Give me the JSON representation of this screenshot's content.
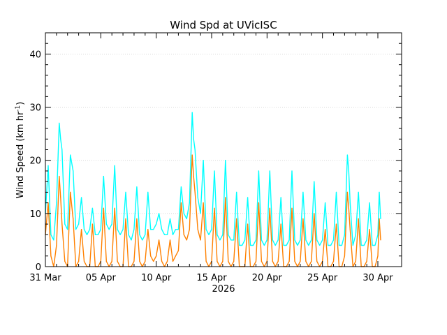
{
  "chart_data": {
    "type": "line",
    "title": "Wind Spd at UVicISC",
    "ylabel": "Wind Speed (km hr",
    "ylabel_sup": "-1",
    "ylabel_tail": ")",
    "xlabel": "2026",
    "ylim": [
      0,
      44
    ],
    "yticks": [
      0,
      10,
      20,
      30,
      40
    ],
    "xlim": [
      "2026-03-31",
      "2026-04-30"
    ],
    "xticks": [
      {
        "date": "2026-03-31",
        "label": "31 Mar"
      },
      {
        "date": "2026-04-05",
        "label": "05 Apr"
      },
      {
        "date": "2026-04-10",
        "label": "10 Apr"
      },
      {
        "date": "2026-04-15",
        "label": "15 Apr"
      },
      {
        "date": "2026-04-20",
        "label": "20 Apr"
      },
      {
        "date": "2026-04-25",
        "label": "25 Apr"
      },
      {
        "date": "2026-04-30",
        "label": "30 Apr"
      }
    ],
    "grid": true,
    "series": [
      {
        "color": "#00ffff",
        "points": [
          [
            "2026-03-31T00:00",
            10
          ],
          [
            "2026-03-31T06:00",
            19
          ],
          [
            "2026-03-31T12:00",
            6
          ],
          [
            "2026-03-31T18:00",
            5
          ],
          [
            "2026-04-01T00:00",
            12
          ],
          [
            "2026-04-01T06:00",
            27
          ],
          [
            "2026-04-01T09:00",
            24
          ],
          [
            "2026-04-01T12:00",
            22
          ],
          [
            "2026-04-01T18:00",
            8
          ],
          [
            "2026-04-02T00:00",
            7
          ],
          [
            "2026-04-02T06:00",
            21
          ],
          [
            "2026-04-02T12:00",
            18
          ],
          [
            "2026-04-02T18:00",
            7
          ],
          [
            "2026-04-03T00:00",
            8
          ],
          [
            "2026-04-03T06:00",
            13
          ],
          [
            "2026-04-03T12:00",
            7
          ],
          [
            "2026-04-03T18:00",
            6
          ],
          [
            "2026-04-04T00:00",
            7
          ],
          [
            "2026-04-04T06:00",
            11
          ],
          [
            "2026-04-04T12:00",
            6
          ],
          [
            "2026-04-04T18:00",
            6
          ],
          [
            "2026-04-05T00:00",
            7
          ],
          [
            "2026-04-05T06:00",
            17
          ],
          [
            "2026-04-05T12:00",
            8
          ],
          [
            "2026-04-05T18:00",
            7
          ],
          [
            "2026-04-06T00:00",
            8
          ],
          [
            "2026-04-06T06:00",
            19
          ],
          [
            "2026-04-06T12:00",
            7
          ],
          [
            "2026-04-06T18:00",
            6
          ],
          [
            "2026-04-07T00:00",
            7
          ],
          [
            "2026-04-07T06:00",
            14
          ],
          [
            "2026-04-07T12:00",
            6
          ],
          [
            "2026-04-07T18:00",
            5
          ],
          [
            "2026-04-08T00:00",
            7
          ],
          [
            "2026-04-08T06:00",
            15
          ],
          [
            "2026-04-08T12:00",
            6
          ],
          [
            "2026-04-08T18:00",
            5
          ],
          [
            "2026-04-09T00:00",
            6
          ],
          [
            "2026-04-09T06:00",
            14
          ],
          [
            "2026-04-09T12:00",
            7
          ],
          [
            "2026-04-09T18:00",
            7
          ],
          [
            "2026-04-10T00:00",
            8
          ],
          [
            "2026-04-10T06:00",
            10
          ],
          [
            "2026-04-10T12:00",
            7
          ],
          [
            "2026-04-10T18:00",
            6
          ],
          [
            "2026-04-11T00:00",
            6
          ],
          [
            "2026-04-11T06:00",
            9
          ],
          [
            "2026-04-11T12:00",
            6
          ],
          [
            "2026-04-11T18:00",
            7
          ],
          [
            "2026-04-12T00:00",
            7
          ],
          [
            "2026-04-12T06:00",
            15
          ],
          [
            "2026-04-12T12:00",
            10
          ],
          [
            "2026-04-12T18:00",
            9
          ],
          [
            "2026-04-13T00:00",
            12
          ],
          [
            "2026-04-13T06:00",
            29
          ],
          [
            "2026-04-13T09:00",
            24
          ],
          [
            "2026-04-13T12:00",
            22
          ],
          [
            "2026-04-13T18:00",
            13
          ],
          [
            "2026-04-14T00:00",
            10
          ],
          [
            "2026-04-14T06:00",
            20
          ],
          [
            "2026-04-14T12:00",
            7
          ],
          [
            "2026-04-14T18:00",
            6
          ],
          [
            "2026-04-15T00:00",
            7
          ],
          [
            "2026-04-15T06:00",
            18
          ],
          [
            "2026-04-15T12:00",
            6
          ],
          [
            "2026-04-15T18:00",
            5
          ],
          [
            "2026-04-16T00:00",
            6
          ],
          [
            "2026-04-16T06:00",
            20
          ],
          [
            "2026-04-16T12:00",
            6
          ],
          [
            "2026-04-16T18:00",
            5
          ],
          [
            "2026-04-17T00:00",
            5
          ],
          [
            "2026-04-17T06:00",
            14
          ],
          [
            "2026-04-17T12:00",
            4
          ],
          [
            "2026-04-17T18:00",
            4
          ],
          [
            "2026-04-18T00:00",
            5
          ],
          [
            "2026-04-18T06:00",
            13
          ],
          [
            "2026-04-18T12:00",
            4
          ],
          [
            "2026-04-18T18:00",
            4
          ],
          [
            "2026-04-19T00:00",
            5
          ],
          [
            "2026-04-19T06:00",
            18
          ],
          [
            "2026-04-19T12:00",
            5
          ],
          [
            "2026-04-19T18:00",
            4
          ],
          [
            "2026-04-20T00:00",
            5
          ],
          [
            "2026-04-20T06:00",
            18
          ],
          [
            "2026-04-20T12:00",
            5
          ],
          [
            "2026-04-20T18:00",
            4
          ],
          [
            "2026-04-21T00:00",
            5
          ],
          [
            "2026-04-21T06:00",
            13
          ],
          [
            "2026-04-21T12:00",
            4
          ],
          [
            "2026-04-21T18:00",
            4
          ],
          [
            "2026-04-22T00:00",
            5
          ],
          [
            "2026-04-22T06:00",
            18
          ],
          [
            "2026-04-22T12:00",
            5
          ],
          [
            "2026-04-22T18:00",
            4
          ],
          [
            "2026-04-23T00:00",
            5
          ],
          [
            "2026-04-23T06:00",
            14
          ],
          [
            "2026-04-23T12:00",
            5
          ],
          [
            "2026-04-23T18:00",
            4
          ],
          [
            "2026-04-24T00:00",
            5
          ],
          [
            "2026-04-24T06:00",
            16
          ],
          [
            "2026-04-24T12:00",
            5
          ],
          [
            "2026-04-24T18:00",
            4
          ],
          [
            "2026-04-25T00:00",
            5
          ],
          [
            "2026-04-25T06:00",
            12
          ],
          [
            "2026-04-25T12:00",
            4
          ],
          [
            "2026-04-25T18:00",
            4
          ],
          [
            "2026-04-26T00:00",
            5
          ],
          [
            "2026-04-26T06:00",
            14
          ],
          [
            "2026-04-26T12:00",
            4
          ],
          [
            "2026-04-26T18:00",
            4
          ],
          [
            "2026-04-27T00:00",
            6
          ],
          [
            "2026-04-27T06:00",
            21
          ],
          [
            "2026-04-27T09:00",
            18
          ],
          [
            "2026-04-27T12:00",
            12
          ],
          [
            "2026-04-27T18:00",
            4
          ],
          [
            "2026-04-28T00:00",
            6
          ],
          [
            "2026-04-28T06:00",
            14
          ],
          [
            "2026-04-28T12:00",
            4
          ],
          [
            "2026-04-28T18:00",
            4
          ],
          [
            "2026-04-29T00:00",
            5
          ],
          [
            "2026-04-29T06:00",
            12
          ],
          [
            "2026-04-29T12:00",
            4
          ],
          [
            "2026-04-29T18:00",
            4
          ],
          [
            "2026-04-30T00:00",
            6
          ],
          [
            "2026-04-30T03:00",
            14
          ],
          [
            "2026-04-30T06:00",
            9
          ]
        ]
      },
      {
        "color": "#ff8000",
        "points": [
          [
            "2026-03-31T00:00",
            6
          ],
          [
            "2026-03-31T06:00",
            12
          ],
          [
            "2026-03-31T12:00",
            2
          ],
          [
            "2026-03-31T18:00",
            0
          ],
          [
            "2026-04-01T00:00",
            4
          ],
          [
            "2026-04-01T06:00",
            17
          ],
          [
            "2026-04-01T09:00",
            13
          ],
          [
            "2026-04-01T12:00",
            8
          ],
          [
            "2026-04-01T18:00",
            1
          ],
          [
            "2026-04-02T00:00",
            0
          ],
          [
            "2026-04-02T06:00",
            14
          ],
          [
            "2026-04-02T12:00",
            9
          ],
          [
            "2026-04-02T18:00",
            0
          ],
          [
            "2026-04-03T00:00",
            1
          ],
          [
            "2026-04-03T06:00",
            7
          ],
          [
            "2026-04-03T12:00",
            1
          ],
          [
            "2026-04-03T18:00",
            0
          ],
          [
            "2026-04-04T00:00",
            0
          ],
          [
            "2026-04-04T06:00",
            8
          ],
          [
            "2026-04-04T12:00",
            0
          ],
          [
            "2026-04-04T18:00",
            0
          ],
          [
            "2026-04-05T00:00",
            1
          ],
          [
            "2026-04-05T06:00",
            11
          ],
          [
            "2026-04-05T12:00",
            1
          ],
          [
            "2026-04-05T18:00",
            0
          ],
          [
            "2026-04-06T00:00",
            1
          ],
          [
            "2026-04-06T06:00",
            11
          ],
          [
            "2026-04-06T12:00",
            1
          ],
          [
            "2026-04-06T18:00",
            0
          ],
          [
            "2026-04-07T00:00",
            0
          ],
          [
            "2026-04-07T06:00",
            9
          ],
          [
            "2026-04-07T12:00",
            0
          ],
          [
            "2026-04-07T18:00",
            0
          ],
          [
            "2026-04-08T00:00",
            1
          ],
          [
            "2026-04-08T06:00",
            9
          ],
          [
            "2026-04-08T12:00",
            1
          ],
          [
            "2026-04-08T18:00",
            0
          ],
          [
            "2026-04-09T00:00",
            1
          ],
          [
            "2026-04-09T06:00",
            7
          ],
          [
            "2026-04-09T12:00",
            2
          ],
          [
            "2026-04-09T18:00",
            1
          ],
          [
            "2026-04-10T00:00",
            2
          ],
          [
            "2026-04-10T06:00",
            5
          ],
          [
            "2026-04-10T12:00",
            1
          ],
          [
            "2026-04-10T18:00",
            0
          ],
          [
            "2026-04-11T00:00",
            1
          ],
          [
            "2026-04-11T06:00",
            5
          ],
          [
            "2026-04-11T12:00",
            1
          ],
          [
            "2026-04-11T18:00",
            2
          ],
          [
            "2026-04-12T00:00",
            3
          ],
          [
            "2026-04-12T06:00",
            12
          ],
          [
            "2026-04-12T12:00",
            6
          ],
          [
            "2026-04-12T18:00",
            5
          ],
          [
            "2026-04-13T00:00",
            7
          ],
          [
            "2026-04-13T06:00",
            21
          ],
          [
            "2026-04-13T09:00",
            17
          ],
          [
            "2026-04-13T12:00",
            14
          ],
          [
            "2026-04-13T18:00",
            7
          ],
          [
            "2026-04-14T00:00",
            5
          ],
          [
            "2026-04-14T06:00",
            12
          ],
          [
            "2026-04-14T12:00",
            1
          ],
          [
            "2026-04-14T18:00",
            0
          ],
          [
            "2026-04-15T00:00",
            1
          ],
          [
            "2026-04-15T06:00",
            11
          ],
          [
            "2026-04-15T12:00",
            1
          ],
          [
            "2026-04-15T18:00",
            0
          ],
          [
            "2026-04-16T00:00",
            1
          ],
          [
            "2026-04-16T06:00",
            13
          ],
          [
            "2026-04-16T12:00",
            1
          ],
          [
            "2026-04-16T18:00",
            0
          ],
          [
            "2026-04-17T00:00",
            1
          ],
          [
            "2026-04-17T06:00",
            9
          ],
          [
            "2026-04-17T12:00",
            0
          ],
          [
            "2026-04-17T18:00",
            0
          ],
          [
            "2026-04-18T00:00",
            0
          ],
          [
            "2026-04-18T06:00",
            8
          ],
          [
            "2026-04-18T12:00",
            0
          ],
          [
            "2026-04-18T18:00",
            0
          ],
          [
            "2026-04-19T00:00",
            1
          ],
          [
            "2026-04-19T06:00",
            12
          ],
          [
            "2026-04-19T12:00",
            1
          ],
          [
            "2026-04-19T18:00",
            0
          ],
          [
            "2026-04-20T00:00",
            1
          ],
          [
            "2026-04-20T06:00",
            11
          ],
          [
            "2026-04-20T12:00",
            1
          ],
          [
            "2026-04-20T18:00",
            0
          ],
          [
            "2026-04-21T00:00",
            1
          ],
          [
            "2026-04-21T06:00",
            8
          ],
          [
            "2026-04-21T12:00",
            0
          ],
          [
            "2026-04-21T18:00",
            0
          ],
          [
            "2026-04-22T00:00",
            1
          ],
          [
            "2026-04-22T06:00",
            11
          ],
          [
            "2026-04-22T12:00",
            1
          ],
          [
            "2026-04-22T18:00",
            0
          ],
          [
            "2026-04-23T00:00",
            1
          ],
          [
            "2026-04-23T06:00",
            9
          ],
          [
            "2026-04-23T12:00",
            1
          ],
          [
            "2026-04-23T18:00",
            0
          ],
          [
            "2026-04-24T00:00",
            1
          ],
          [
            "2026-04-24T06:00",
            10
          ],
          [
            "2026-04-24T12:00",
            1
          ],
          [
            "2026-04-24T18:00",
            0
          ],
          [
            "2026-04-25T00:00",
            1
          ],
          [
            "2026-04-25T06:00",
            7
          ],
          [
            "2026-04-25T12:00",
            0
          ],
          [
            "2026-04-25T18:00",
            0
          ],
          [
            "2026-04-26T00:00",
            1
          ],
          [
            "2026-04-26T06:00",
            8
          ],
          [
            "2026-04-26T12:00",
            0
          ],
          [
            "2026-04-26T18:00",
            0
          ],
          [
            "2026-04-27T00:00",
            2
          ],
          [
            "2026-04-27T06:00",
            14
          ],
          [
            "2026-04-27T09:00",
            11
          ],
          [
            "2026-04-27T12:00",
            7
          ],
          [
            "2026-04-27T18:00",
            0
          ],
          [
            "2026-04-28T00:00",
            1
          ],
          [
            "2026-04-28T06:00",
            9
          ],
          [
            "2026-04-28T12:00",
            0
          ],
          [
            "2026-04-28T18:00",
            0
          ],
          [
            "2026-04-29T00:00",
            1
          ],
          [
            "2026-04-29T06:00",
            7
          ],
          [
            "2026-04-29T12:00",
            0
          ],
          [
            "2026-04-29T18:00",
            0
          ],
          [
            "2026-04-30T00:00",
            2
          ],
          [
            "2026-04-30T03:00",
            9
          ],
          [
            "2026-04-30T06:00",
            5
          ]
        ]
      }
    ]
  }
}
